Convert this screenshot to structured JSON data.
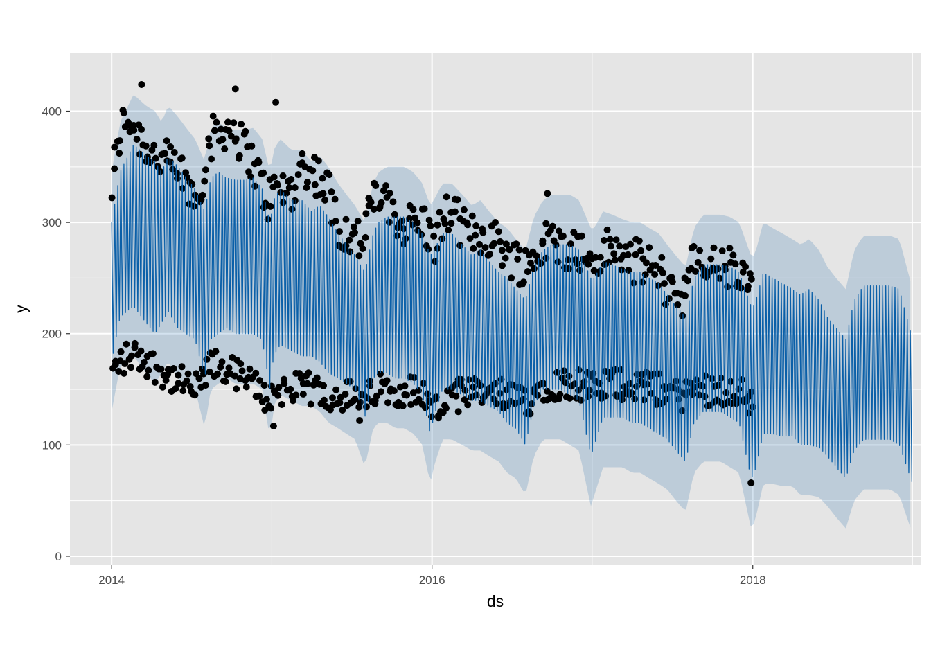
{
  "chart_data": {
    "type": "line",
    "title": "",
    "xlabel": "ds",
    "ylabel": "y",
    "x_range": [
      "2013-09-28",
      "2019-01-20"
    ],
    "ylim": [
      -7.5,
      452
    ],
    "x_ticks": [
      {
        "date": "2014-01-01",
        "label": "2014"
      },
      {
        "date": "2016-01-01",
        "label": "2016"
      },
      {
        "date": "2018-01-01",
        "label": "2018"
      }
    ],
    "y_ticks": [
      {
        "value": 0,
        "label": "0"
      },
      {
        "value": 100,
        "label": "100"
      },
      {
        "value": 200,
        "label": "200"
      },
      {
        "value": 300,
        "label": "300"
      },
      {
        "value": 400,
        "label": "400"
      }
    ],
    "grid": true,
    "background_color": "#e5e5e5",
    "grid_color": "#ffffff",
    "series": [
      {
        "kind": "forecast-line",
        "color": "#0a5fa8",
        "x": [
          "2014-01-01",
          "2014-01-20",
          "2014-02-20",
          "2014-03-20",
          "2014-04-10",
          "2014-04-25",
          "2014-05-10",
          "2014-06-01",
          "2014-06-20",
          "2014-07-10",
          "2014-08-01",
          "2014-08-15",
          "2014-09-01",
          "2014-09-20",
          "2014-10-10",
          "2014-10-30",
          "2014-11-20",
          "2014-12-10",
          "2014-12-28",
          "2015-01-05",
          "2015-01-20",
          "2015-02-15",
          "2015-03-10",
          "2015-04-01",
          "2015-04-20",
          "2015-05-10",
          "2015-06-01",
          "2015-06-20",
          "2015-07-10",
          "2015-08-01",
          "2015-08-20",
          "2015-09-01",
          "2015-09-20",
          "2015-10-10",
          "2015-10-30",
          "2015-11-20",
          "2015-12-10",
          "2015-12-28",
          "2016-01-05",
          "2016-01-25",
          "2016-02-15",
          "2016-03-10",
          "2016-04-01",
          "2016-04-20",
          "2016-05-10",
          "2016-06-01",
          "2016-06-20",
          "2016-07-10",
          "2016-08-01",
          "2016-08-20",
          "2016-09-10",
          "2016-10-01",
          "2016-10-20",
          "2016-11-10",
          "2016-12-01",
          "2016-12-28",
          "2017-01-05",
          "2017-01-25",
          "2017-02-15",
          "2017-03-10",
          "2017-04-01",
          "2017-04-20",
          "2017-05-10",
          "2017-06-01",
          "2017-06-20",
          "2017-07-10",
          "2017-08-01",
          "2017-08-20",
          "2017-09-10",
          "2017-10-01",
          "2017-10-20",
          "2017-11-10",
          "2017-12-01",
          "2017-12-28",
          "2018-01-05",
          "2018-01-25",
          "2018-02-15",
          "2018-03-10",
          "2018-04-01",
          "2018-04-20",
          "2018-05-10",
          "2018-06-01",
          "2018-06-20",
          "2018-07-10",
          "2018-08-01",
          "2018-08-20",
          "2018-09-10",
          "2018-10-01",
          "2018-10-20",
          "2018-11-10",
          "2018-12-01",
          "2018-12-31"
        ],
        "upper": [
          300,
          345,
          370,
          360,
          355,
          345,
          360,
          350,
          340,
          330,
          310,
          340,
          345,
          340,
          338,
          338,
          340,
          330,
          300,
          320,
          330,
          320,
          320,
          310,
          315,
          305,
          290,
          280,
          270,
          255,
          290,
          300,
          305,
          305,
          305,
          300,
          290,
          270,
          275,
          290,
          290,
          280,
          270,
          275,
          265,
          255,
          250,
          240,
          230,
          260,
          275,
          280,
          280,
          280,
          275,
          250,
          250,
          265,
          262,
          258,
          255,
          255,
          250,
          245,
          235,
          225,
          215,
          250,
          262,
          262,
          262,
          260,
          255,
          225,
          225,
          255,
          250,
          245,
          240,
          235,
          240,
          230,
          215,
          205,
          195,
          230,
          243,
          243,
          243,
          243,
          240,
          195
        ],
        "lower": [
          175,
          215,
          225,
          210,
          200,
          210,
          220,
          205,
          200,
          195,
          160,
          195,
          200,
          205,
          200,
          200,
          200,
          195,
          150,
          180,
          190,
          185,
          180,
          180,
          175,
          165,
          160,
          155,
          150,
          125,
          160,
          165,
          165,
          160,
          160,
          155,
          145,
          110,
          125,
          150,
          150,
          145,
          140,
          140,
          135,
          130,
          120,
          115,
          100,
          135,
          150,
          150,
          150,
          145,
          140,
          90,
          100,
          125,
          125,
          125,
          120,
          120,
          115,
          110,
          105,
          95,
          85,
          120,
          130,
          130,
          130,
          125,
          120,
          70,
          75,
          110,
          110,
          108,
          108,
          100,
          100,
          98,
          90,
          80,
          70,
          95,
          105,
          105,
          105,
          105,
          100,
          65
        ]
      },
      {
        "kind": "uncertainty-band",
        "color": "#0a5fa8",
        "upper_offset": 45,
        "lower_offset": 45
      },
      {
        "kind": "observed-points",
        "color": "#000000",
        "x_start": "2014-01-01",
        "x_end": "2018-01-01",
        "upper_cluster": [
          330,
          385,
          395,
          380,
          370,
          360,
          355,
          350,
          345,
          330,
          320,
          365,
          380,
          385,
          385,
          370,
          360,
          340,
          320,
          330,
          330,
          330,
          350,
          350,
          340,
          330,
          300,
          290,
          290,
          280,
          320,
          325,
          310,
          300,
          300,
          300,
          300,
          280,
          295,
          310,
          300,
          290,
          290,
          290,
          285,
          280,
          270,
          265,
          260,
          270,
          285,
          280,
          278,
          278,
          275,
          265,
          265,
          275,
          275,
          270,
          265,
          265,
          260,
          255,
          245,
          240,
          235,
          260,
          262,
          262,
          260,
          260,
          255,
          245,
          245
        ],
        "lower_cluster": [
          165,
          175,
          180,
          180,
          175,
          170,
          165,
          160,
          155,
          150,
          150,
          170,
          170,
          168,
          165,
          160,
          155,
          150,
          140,
          150,
          150,
          150,
          150,
          150,
          150,
          145,
          145,
          145,
          140,
          135,
          150,
          150,
          150,
          150,
          150,
          148,
          145,
          130,
          135,
          145,
          145,
          145,
          145,
          145,
          145,
          145,
          140,
          140,
          140,
          150,
          155,
          155,
          155,
          155,
          155,
          150,
          150,
          155,
          155,
          155,
          155,
          155,
          150,
          150,
          150,
          145,
          145,
          150,
          150,
          150,
          150,
          150,
          150,
          140,
          135
        ],
        "notable_points": [
          {
            "x": "2014-03-10",
            "y": 424
          },
          {
            "x": "2014-10-10",
            "y": 420
          },
          {
            "x": "2015-01-10",
            "y": 408
          },
          {
            "x": "2016-09-20",
            "y": 326
          },
          {
            "x": "2015-01-05",
            "y": 117
          },
          {
            "x": "2015-07-20",
            "y": 122
          },
          {
            "x": "2016-03-01",
            "y": 130
          },
          {
            "x": "2017-12-28",
            "y": 66
          }
        ]
      }
    ]
  }
}
